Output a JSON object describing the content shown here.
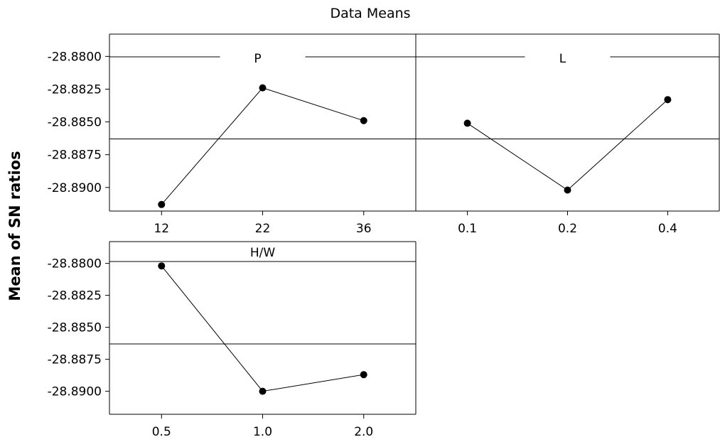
{
  "chart_data": {
    "type": "line",
    "title": "Data Means",
    "ylabel": "Mean of SN ratios",
    "grand_mean": -28.8863,
    "ylim": [
      -28.8918,
      -28.8783
    ],
    "yticks": [
      -28.88,
      -28.8825,
      -28.885,
      -28.8875,
      -28.89
    ],
    "ytick_labels": [
      "-28.8800",
      "-28.8825",
      "-28.8850",
      "-28.8875",
      "-28.8900"
    ],
    "panels": [
      {
        "factor": "P",
        "categories": [
          "12",
          "22",
          "36"
        ],
        "values": [
          -28.8913,
          -28.8824,
          -28.8849
        ]
      },
      {
        "factor": "L",
        "categories": [
          "0.1",
          "0.2",
          "0.4"
        ],
        "values": [
          -28.8851,
          -28.8902,
          -28.8833
        ]
      },
      {
        "factor": "H/W",
        "categories": [
          "0.5",
          "1.0",
          "2.0"
        ],
        "values": [
          -28.8802,
          -28.89,
          -28.8887
        ]
      }
    ],
    "grid": false,
    "legend": "none"
  }
}
